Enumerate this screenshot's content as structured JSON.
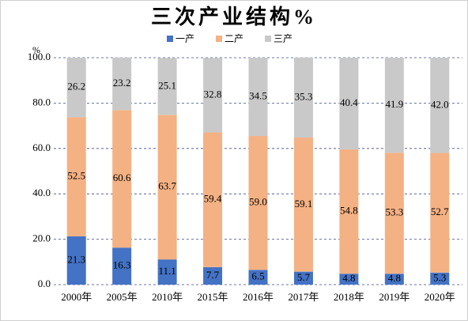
{
  "chart_data": {
    "type": "stacked_bar",
    "title": "三次产业结构%",
    "y_unit": "%",
    "categories": [
      "2000年",
      "2005年",
      "2010年",
      "2015年",
      "2016年",
      "2017年",
      "2018年",
      "2019年",
      "2020年"
    ],
    "series": [
      {
        "name": "一产",
        "color": "#4472c4",
        "values": [
          21.3,
          16.3,
          11.1,
          7.7,
          6.5,
          5.7,
          4.8,
          4.8,
          5.3
        ]
      },
      {
        "name": "二产",
        "color": "#f4b183",
        "values": [
          52.5,
          60.6,
          63.7,
          59.4,
          59.0,
          59.1,
          54.8,
          53.3,
          52.7
        ],
        "value_labels": [
          "52.5",
          "60.6",
          "63.7",
          "59.4",
          "59.0",
          "59.1",
          "54.8",
          "53.3",
          "52.7"
        ]
      },
      {
        "name": "三产",
        "color": "#c9c9c9",
        "values": [
          26.2,
          23.2,
          25.1,
          32.8,
          34.5,
          35.3,
          40.4,
          41.9,
          42.0
        ],
        "value_labels": [
          "26.2",
          "23.2",
          "25.1",
          "32.8",
          "34.5",
          "35.3",
          "40.4",
          "41.9",
          "42.0"
        ]
      }
    ],
    "ylim": [
      0,
      100
    ],
    "yticks": [
      {
        "value": 0,
        "label": "0.0"
      },
      {
        "value": 20,
        "label": "20.0"
      },
      {
        "value": 40,
        "label": "40.0"
      },
      {
        "value": 60,
        "label": "60.0"
      },
      {
        "value": 80,
        "label": "80.0"
      },
      {
        "value": 100,
        "label": "100.0"
      }
    ],
    "grid": true,
    "legend": "top"
  }
}
